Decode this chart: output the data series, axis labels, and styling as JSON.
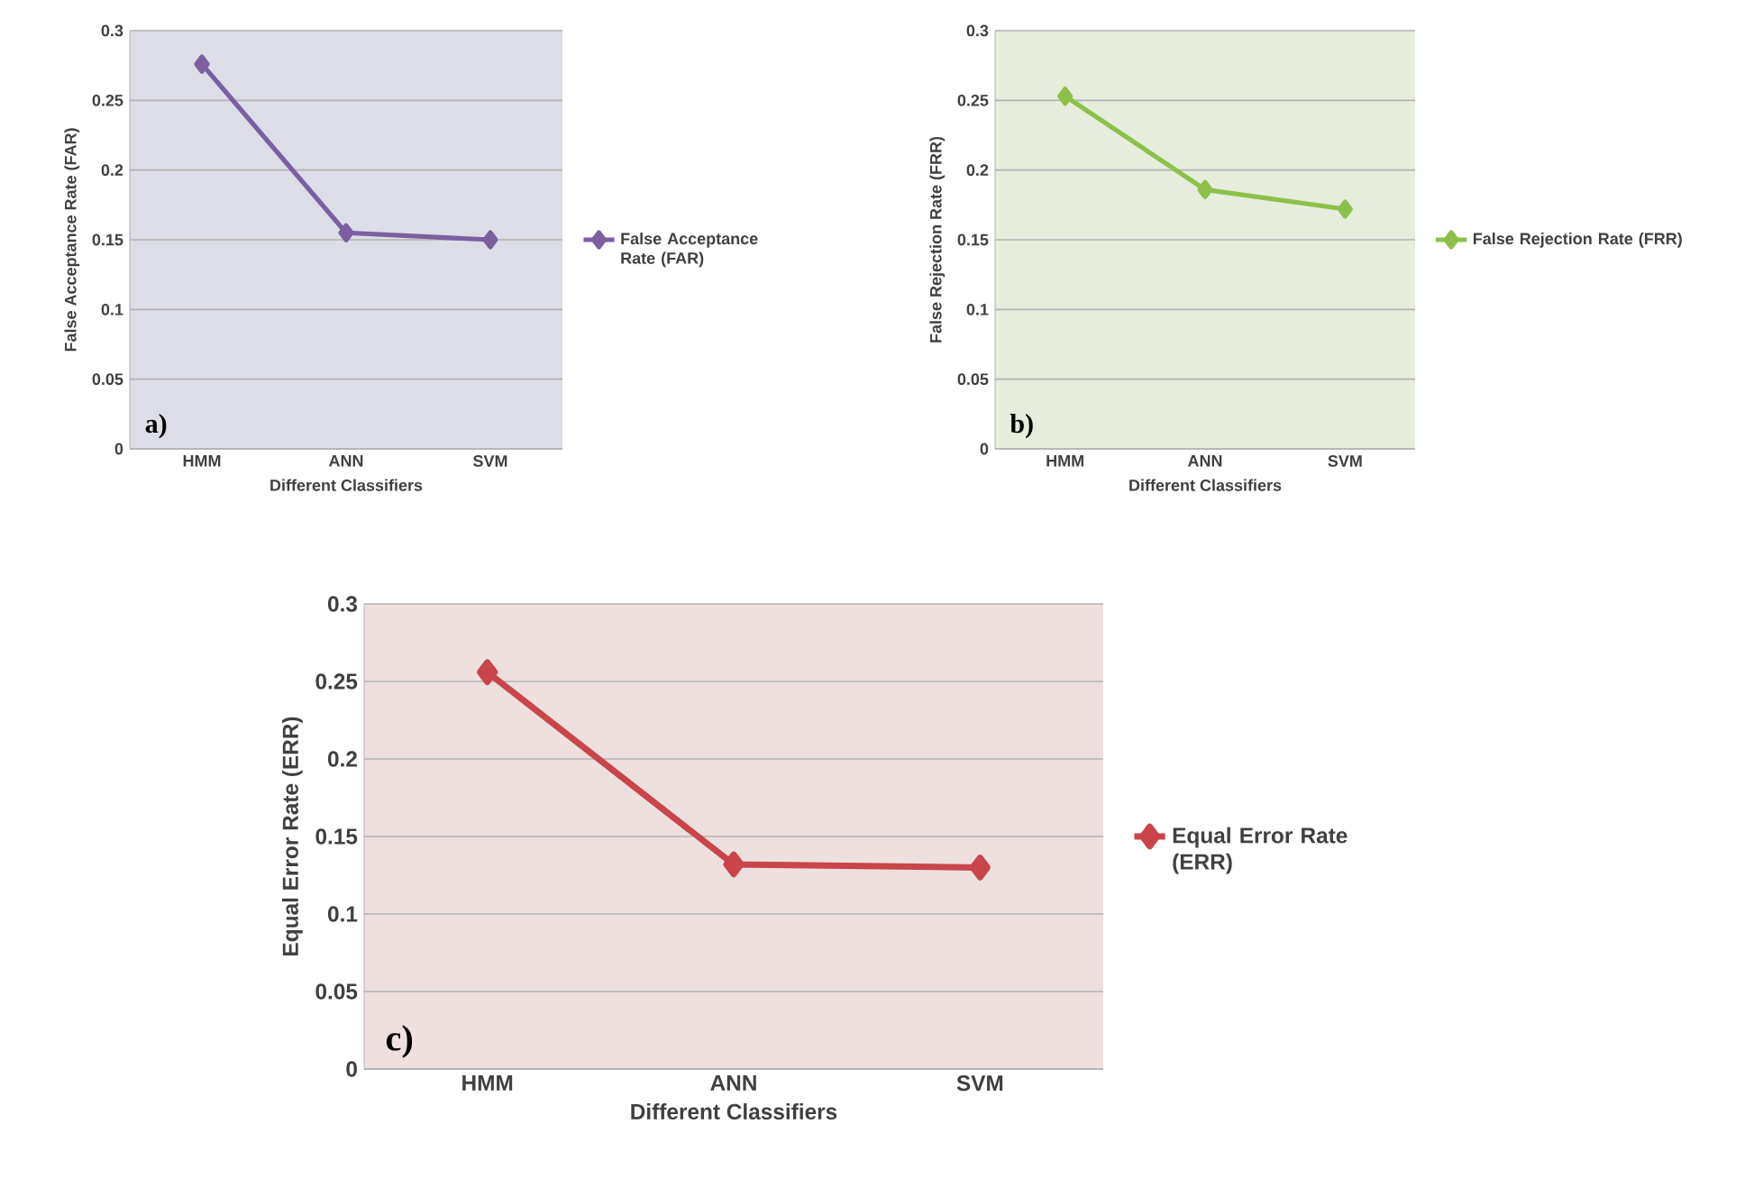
{
  "chart_data": [
    {
      "type": "line",
      "categories": [
        "HMM",
        "ANN",
        "SVM"
      ],
      "xlabel": "Different Classifiers",
      "ylabel": "False Acceptance Rate (FAR)",
      "series": [
        {
          "name": "False Acceptance Rate (FAR)",
          "color": "#7b5fa0",
          "values": [
            0.276,
            0.155,
            0.15
          ]
        }
      ],
      "ylim": [
        0,
        0.3
      ],
      "yticks": [
        0,
        0.05,
        0.1,
        0.15,
        0.2,
        0.25,
        0.3
      ],
      "grid": "y",
      "legend": "right",
      "marker": "diamond",
      "line_style": "solid",
      "annotations": [
        "a)"
      ]
    },
    {
      "type": "line",
      "categories": [
        "HMM",
        "ANN",
        "SVM"
      ],
      "xlabel": "Different Classifiers",
      "ylabel": "False Rejection Rate (FRR)",
      "series": [
        {
          "name": "False Rejection Rate (FRR)",
          "color": "#8dc04a",
          "values": [
            0.253,
            0.186,
            0.172
          ]
        }
      ],
      "ylim": [
        0,
        0.3
      ],
      "yticks": [
        0,
        0.05,
        0.1,
        0.15,
        0.2,
        0.25,
        0.3
      ],
      "grid": "y",
      "legend": "right",
      "marker": "diamond",
      "line_style": "solid",
      "annotations": [
        "b)"
      ]
    },
    {
      "type": "line",
      "categories": [
        "HMM",
        "ANN",
        "SVM"
      ],
      "xlabel": "Different Classifiers",
      "ylabel": "Equal Error Rate (ERR)",
      "series": [
        {
          "name": "Equal Error Rate (ERR)",
          "color": "#c9454a",
          "values": [
            0.256,
            0.132,
            0.13
          ]
        }
      ],
      "ylim": [
        0,
        0.3
      ],
      "yticks": [
        0,
        0.05,
        0.1,
        0.15,
        0.2,
        0.25,
        0.3
      ],
      "grid": "y",
      "legend": "right",
      "marker": "diamond",
      "line_style": "solid",
      "annotations": [
        "c)"
      ]
    }
  ]
}
